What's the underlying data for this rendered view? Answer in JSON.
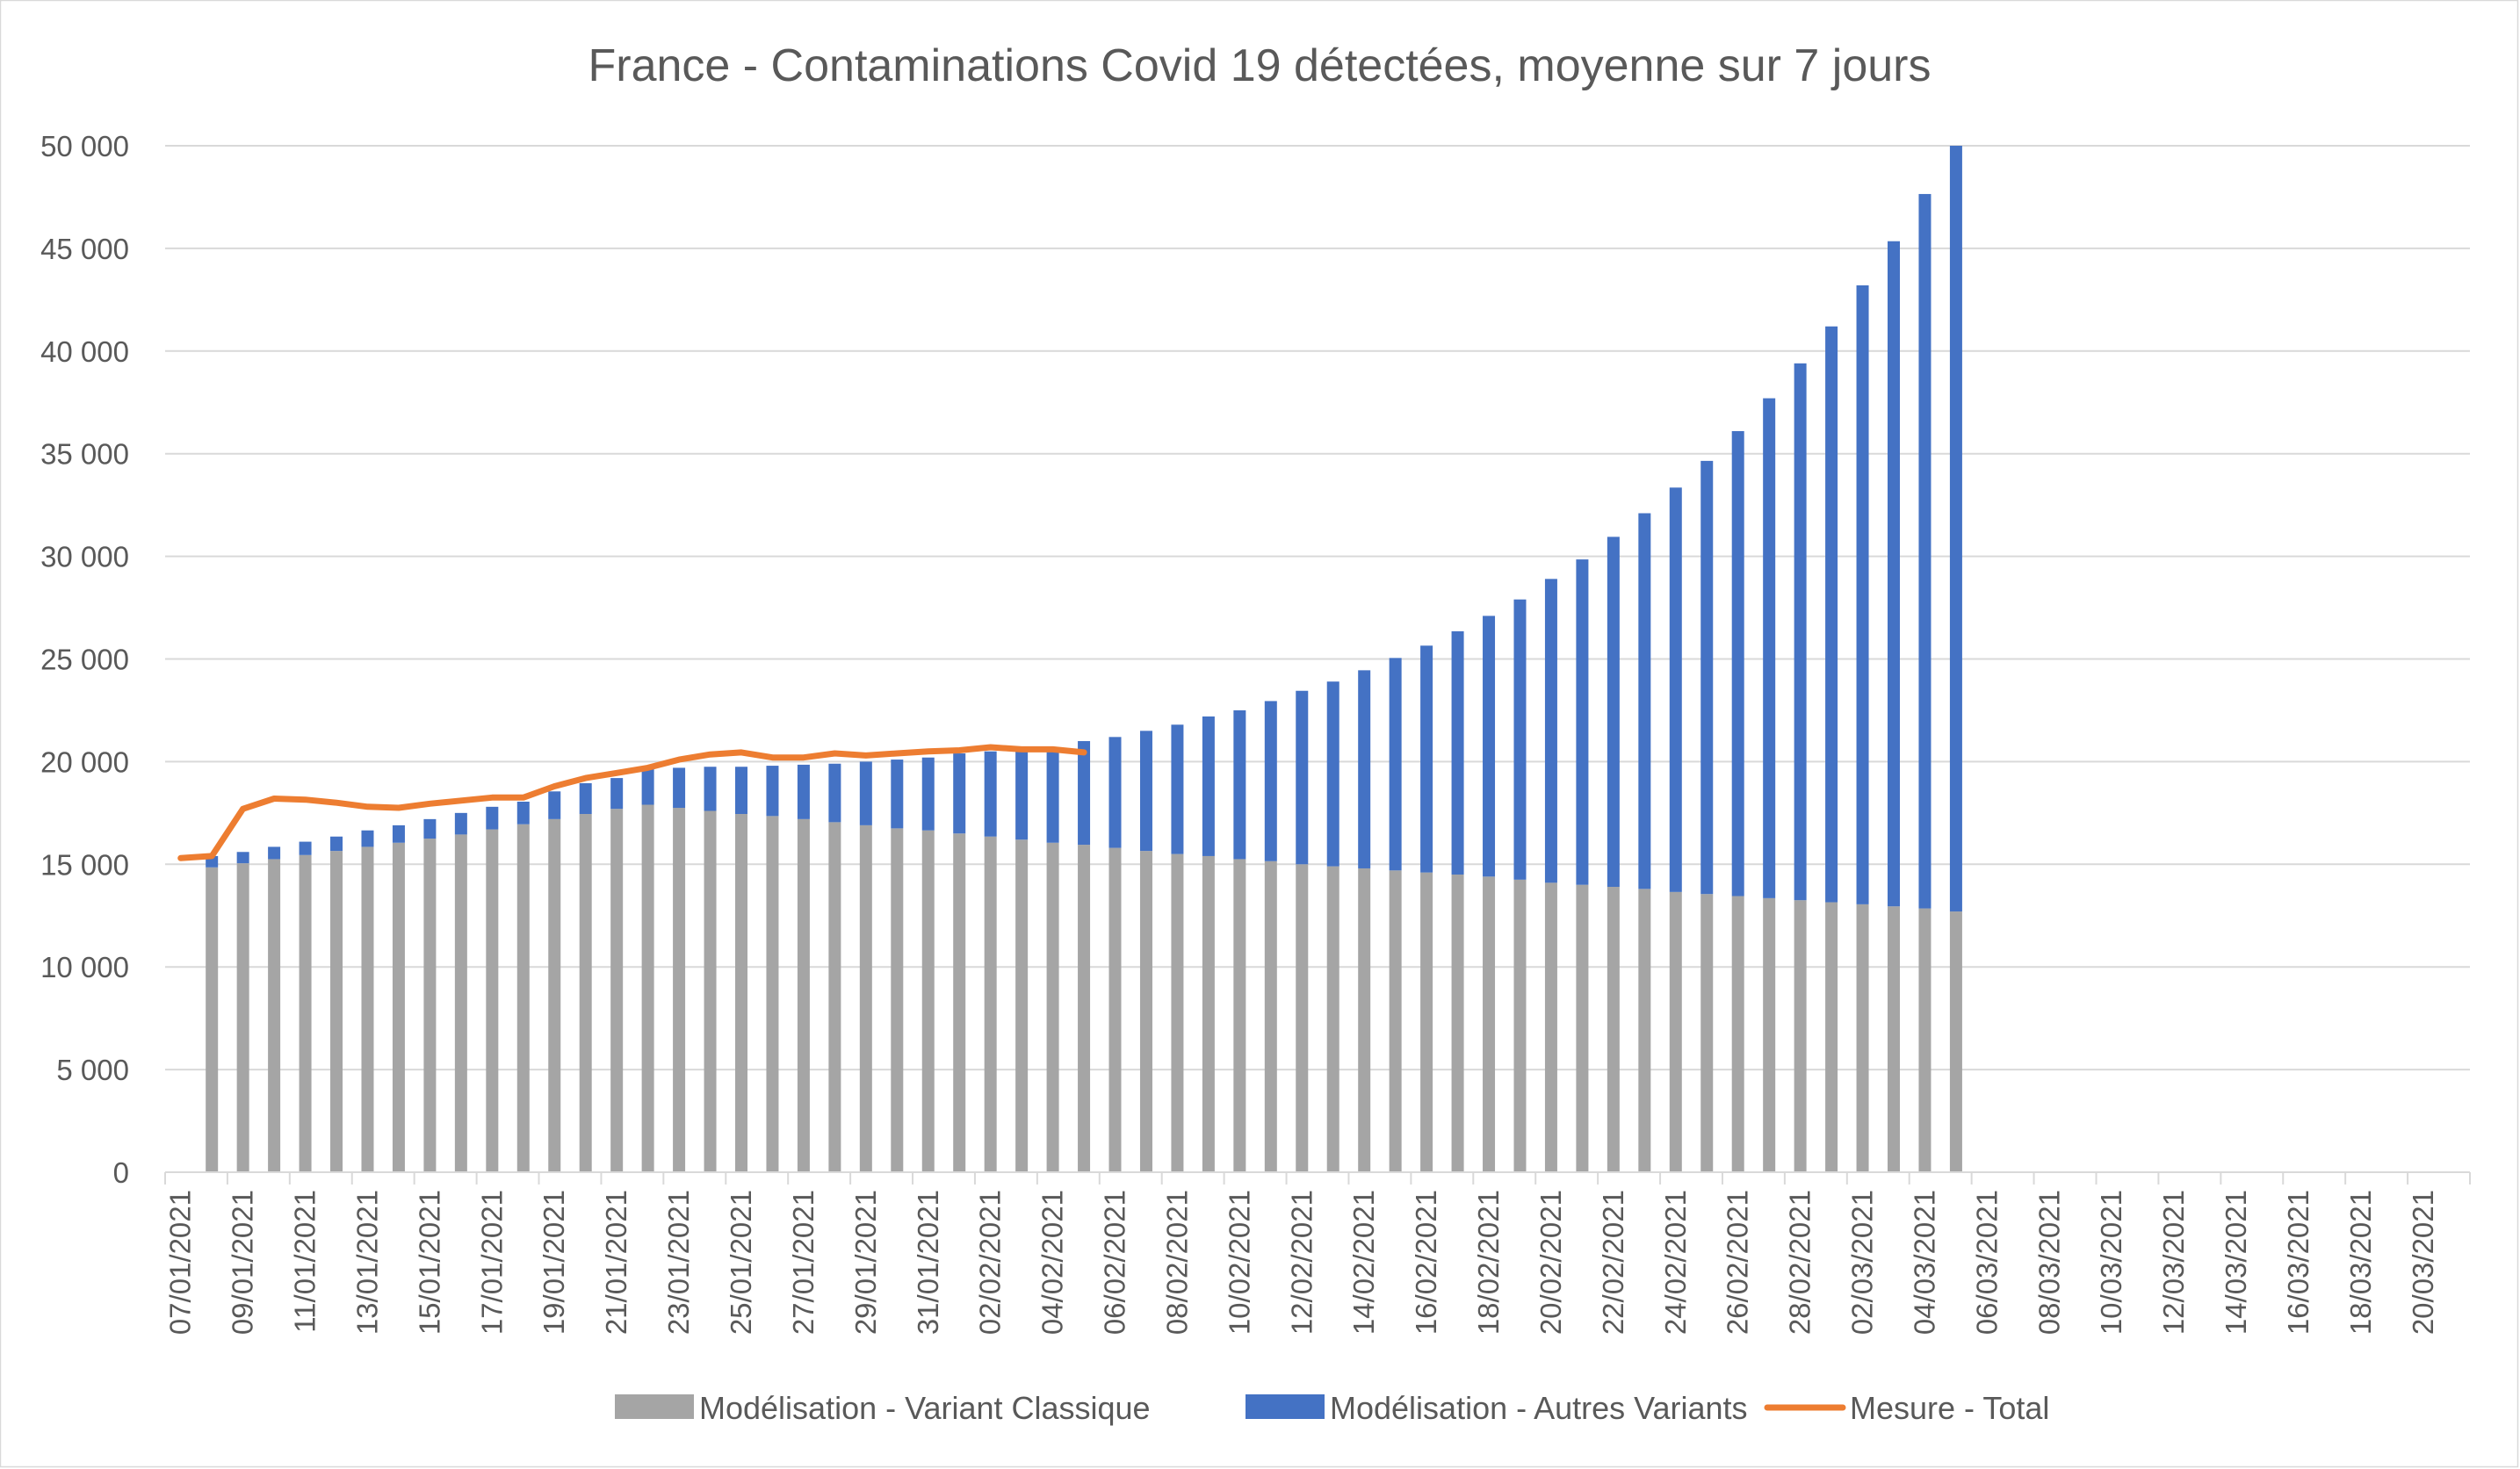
{
  "chart_data": {
    "type": "bar",
    "stacked": true,
    "title": "France - Contaminations Covid 19 détectées, moyenne sur 7 jours",
    "xlabel": "",
    "ylabel": "",
    "ylim": [
      0,
      50000
    ],
    "yticks": [
      0,
      5000,
      10000,
      15000,
      20000,
      25000,
      30000,
      35000,
      40000,
      45000,
      50000
    ],
    "ytick_labels": [
      "0",
      "5 000",
      "10 000",
      "15 000",
      "20 000",
      "25 000",
      "30 000",
      "35 000",
      "40 000",
      "45 000",
      "50 000"
    ],
    "grid": true,
    "legend_position": "bottom",
    "categories": [
      "07/01/2021",
      "08/01/2021",
      "09/01/2021",
      "10/01/2021",
      "11/01/2021",
      "12/01/2021",
      "13/01/2021",
      "14/01/2021",
      "15/01/2021",
      "16/01/2021",
      "17/01/2021",
      "18/01/2021",
      "19/01/2021",
      "20/01/2021",
      "21/01/2021",
      "22/01/2021",
      "23/01/2021",
      "24/01/2021",
      "25/01/2021",
      "26/01/2021",
      "27/01/2021",
      "28/01/2021",
      "29/01/2021",
      "30/01/2021",
      "31/01/2021",
      "01/02/2021",
      "02/02/2021",
      "03/02/2021",
      "04/02/2021",
      "05/02/2021",
      "06/02/2021",
      "07/02/2021",
      "08/02/2021",
      "09/02/2021",
      "10/02/2021",
      "11/02/2021",
      "12/02/2021",
      "13/02/2021",
      "14/02/2021",
      "15/02/2021",
      "16/02/2021",
      "17/02/2021",
      "18/02/2021",
      "19/02/2021",
      "20/02/2021",
      "21/02/2021",
      "22/02/2021",
      "23/02/2021",
      "24/02/2021",
      "25/02/2021",
      "26/02/2021",
      "27/02/2021",
      "28/02/2021",
      "01/03/2021",
      "02/03/2021",
      "03/03/2021",
      "04/03/2021",
      "05/03/2021",
      "06/03/2021",
      "07/03/2021",
      "08/03/2021",
      "09/03/2021",
      "10/03/2021",
      "11/03/2021",
      "12/03/2021",
      "13/03/2021",
      "14/03/2021",
      "15/03/2021",
      "16/03/2021",
      "17/03/2021",
      "18/03/2021",
      "19/03/2021",
      "20/03/2021",
      "21/03/2021"
    ],
    "tick_labels": [
      "07/01/2021",
      "09/01/2021",
      "11/01/2021",
      "13/01/2021",
      "15/01/2021",
      "17/01/2021",
      "19/01/2021",
      "21/01/2021",
      "23/01/2021",
      "25/01/2021",
      "27/01/2021",
      "29/01/2021",
      "31/01/2021",
      "02/02/2021",
      "04/02/2021",
      "06/02/2021",
      "08/02/2021",
      "10/02/2021",
      "12/02/2021",
      "14/02/2021",
      "16/02/2021",
      "18/02/2021",
      "20/02/2021",
      "22/02/2021",
      "24/02/2021",
      "26/02/2021",
      "28/02/2021",
      "02/03/2021",
      "04/03/2021",
      "06/03/2021",
      "08/03/2021",
      "10/03/2021",
      "12/03/2021",
      "14/03/2021",
      "16/03/2021",
      "18/03/2021",
      "20/03/2021"
    ],
    "series": [
      {
        "name": "Modélisation - Variant Classique",
        "kind": "bar",
        "color": "#a5a5a5",
        "values": [
          null,
          14850,
          15050,
          15250,
          15450,
          15650,
          15850,
          16050,
          16250,
          16450,
          16700,
          16950,
          17200,
          17450,
          17700,
          17900,
          17750,
          17600,
          17450,
          17350,
          17200,
          17050,
          16900,
          16750,
          16650,
          16500,
          16350,
          16200,
          16050,
          15950,
          15800,
          15650,
          15500,
          15400,
          15250,
          15150,
          15000,
          14900,
          14800,
          14700,
          14600,
          14500,
          14400,
          14250,
          14100,
          14000,
          13900,
          13800,
          13650,
          13550,
          13450,
          13350,
          13250,
          13150,
          13050,
          12950,
          12850,
          12700,
          null,
          null,
          null,
          null,
          null,
          null,
          null,
          null,
          null,
          null,
          null,
          null,
          null,
          null,
          null,
          null
        ]
      },
      {
        "name": "Modélisation - Autres Variants",
        "kind": "bar",
        "color": "#4472c4",
        "values": [
          null,
          550,
          550,
          600,
          650,
          700,
          800,
          850,
          950,
          1050,
          1100,
          1100,
          1350,
          1500,
          1500,
          1800,
          1950,
          2150,
          2300,
          2450,
          2650,
          2850,
          3100,
          3350,
          3550,
          3900,
          4150,
          4300,
          4550,
          5050,
          5400,
          5850,
          6300,
          6800,
          7250,
          7800,
          8450,
          9000,
          9650,
          10350,
          11050,
          11850,
          12700,
          13650,
          14800,
          15850,
          17050,
          18300,
          19700,
          21100,
          22650,
          24350,
          26150,
          28050,
          30150,
          32400,
          34800,
          37300,
          null,
          null,
          null,
          null,
          null,
          null,
          null,
          null,
          null,
          null,
          null,
          null,
          null,
          null,
          null,
          null
        ]
      },
      {
        "name": "Mesure - Total",
        "kind": "line",
        "color": "#ed7d31",
        "values": [
          15300,
          15400,
          17700,
          18200,
          18150,
          18000,
          17800,
          17750,
          17950,
          18100,
          18250,
          18250,
          18800,
          19200,
          19450,
          19700,
          20100,
          20350,
          20450,
          20200,
          20200,
          20400,
          20300,
          20400,
          20500,
          20550,
          20700,
          20600,
          20600,
          20450,
          null,
          null,
          null,
          null,
          null,
          null,
          null,
          null,
          null,
          null,
          null,
          null,
          null,
          null,
          null,
          null,
          null,
          null,
          null,
          null,
          null,
          null,
          null,
          null,
          null,
          null,
          null,
          null,
          null,
          null,
          null,
          null,
          null,
          null,
          null,
          null,
          null,
          null,
          null,
          null,
          null,
          null,
          null,
          null
        ]
      }
    ]
  }
}
